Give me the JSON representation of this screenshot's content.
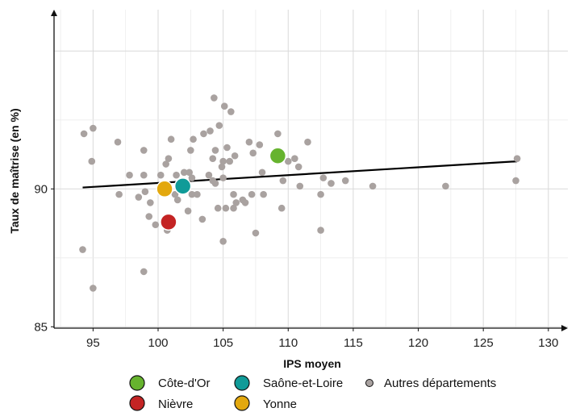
{
  "chart_data": {
    "type": "scatter",
    "xlabel": "IPS moyen",
    "ylabel": "Taux de maîtrise (en %)",
    "xlim": [
      92,
      131.5
    ],
    "ylim": [
      84.95,
      96.5
    ],
    "xticks": [
      95,
      100,
      105,
      110,
      115,
      120,
      125,
      130
    ],
    "yticks": [
      85,
      90
    ],
    "grid": true,
    "legend_position": "bottom",
    "trend_line": {
      "x": [
        94.2,
        127.6
      ],
      "y": [
        90.05,
        91.0
      ],
      "color": "#000000"
    },
    "series": [
      {
        "name": "Autres départements",
        "color": "#a9a2a0",
        "points": [
          [
            104.3,
            93.3
          ],
          [
            105.1,
            93.0
          ],
          [
            105.6,
            92.8
          ],
          [
            104.7,
            92.3
          ],
          [
            104.0,
            92.1
          ],
          [
            103.5,
            92.0
          ],
          [
            109.2,
            92.0
          ],
          [
            94.3,
            92.0
          ],
          [
            95.0,
            92.2
          ],
          [
            96.9,
            91.7
          ],
          [
            101.0,
            91.8
          ],
          [
            102.7,
            91.8
          ],
          [
            105.3,
            91.5
          ],
          [
            107.0,
            91.7
          ],
          [
            107.8,
            91.6
          ],
          [
            111.5,
            91.7
          ],
          [
            98.9,
            91.4
          ],
          [
            102.5,
            91.4
          ],
          [
            104.4,
            91.4
          ],
          [
            107.3,
            91.3
          ],
          [
            109.0,
            91.2
          ],
          [
            110.5,
            91.1
          ],
          [
            94.9,
            91.0
          ],
          [
            100.8,
            91.1
          ],
          [
            104.2,
            91.1
          ],
          [
            105.0,
            91.0
          ],
          [
            105.5,
            91.0
          ],
          [
            105.9,
            91.2
          ],
          [
            110.0,
            91.0
          ],
          [
            100.6,
            90.9
          ],
          [
            104.9,
            90.8
          ],
          [
            110.8,
            90.8
          ],
          [
            101.4,
            90.5
          ],
          [
            102.0,
            90.6
          ],
          [
            102.4,
            90.6
          ],
          [
            98.9,
            90.5
          ],
          [
            97.8,
            90.5
          ],
          [
            103.9,
            90.5
          ],
          [
            108.0,
            90.6
          ],
          [
            102.6,
            90.4
          ],
          [
            104.2,
            90.3
          ],
          [
            105.0,
            90.4
          ],
          [
            109.6,
            90.3
          ],
          [
            112.7,
            90.4
          ],
          [
            113.3,
            90.2
          ],
          [
            114.4,
            90.3
          ],
          [
            116.5,
            90.1
          ],
          [
            122.1,
            90.1
          ],
          [
            127.5,
            90.3
          ],
          [
            127.6,
            91.1
          ],
          [
            100.2,
            90.5
          ],
          [
            110.9,
            90.1
          ],
          [
            104.4,
            90.2
          ],
          [
            97.0,
            89.8
          ],
          [
            98.5,
            89.7
          ],
          [
            99.0,
            89.9
          ],
          [
            101.3,
            89.8
          ],
          [
            102.6,
            89.8
          ],
          [
            103.0,
            89.8
          ],
          [
            105.8,
            89.8
          ],
          [
            106.5,
            89.6
          ],
          [
            107.2,
            89.8
          ],
          [
            108.1,
            89.8
          ],
          [
            112.5,
            89.8
          ],
          [
            99.4,
            89.5
          ],
          [
            106.0,
            89.5
          ],
          [
            106.7,
            89.5
          ],
          [
            101.5,
            89.6
          ],
          [
            104.6,
            89.3
          ],
          [
            105.2,
            89.3
          ],
          [
            105.8,
            89.3
          ],
          [
            109.5,
            89.3
          ],
          [
            102.3,
            89.2
          ],
          [
            99.3,
            89.0
          ],
          [
            103.4,
            88.9
          ],
          [
            99.8,
            88.7
          ],
          [
            100.7,
            88.5
          ],
          [
            107.5,
            88.4
          ],
          [
            112.5,
            88.5
          ],
          [
            105.0,
            88.1
          ],
          [
            94.2,
            87.8
          ],
          [
            98.9,
            87.0
          ],
          [
            95.0,
            86.4
          ]
        ]
      },
      {
        "name": "Côte-d'Or",
        "color": "#66b32e",
        "points": [
          [
            109.2,
            91.2
          ]
        ]
      },
      {
        "name": "Saône-et-Loire",
        "color": "#109b98",
        "points": [
          [
            101.9,
            90.1
          ]
        ]
      },
      {
        "name": "Nièvre",
        "color": "#c42424",
        "points": [
          [
            100.8,
            88.8
          ]
        ]
      },
      {
        "name": "Yonne",
        "color": "#e3a80e",
        "points": [
          [
            100.5,
            90.0
          ]
        ]
      }
    ]
  },
  "legend": {
    "items": [
      {
        "label": "Côte-d'Or",
        "color": "#66b32e"
      },
      {
        "label": "Saône-et-Loire",
        "color": "#109b98"
      },
      {
        "label": "Autres départements",
        "color": "#a9a2a0"
      },
      {
        "label": "Nièvre",
        "color": "#c42424"
      },
      {
        "label": "Yonne",
        "color": "#e3a80e"
      }
    ]
  }
}
